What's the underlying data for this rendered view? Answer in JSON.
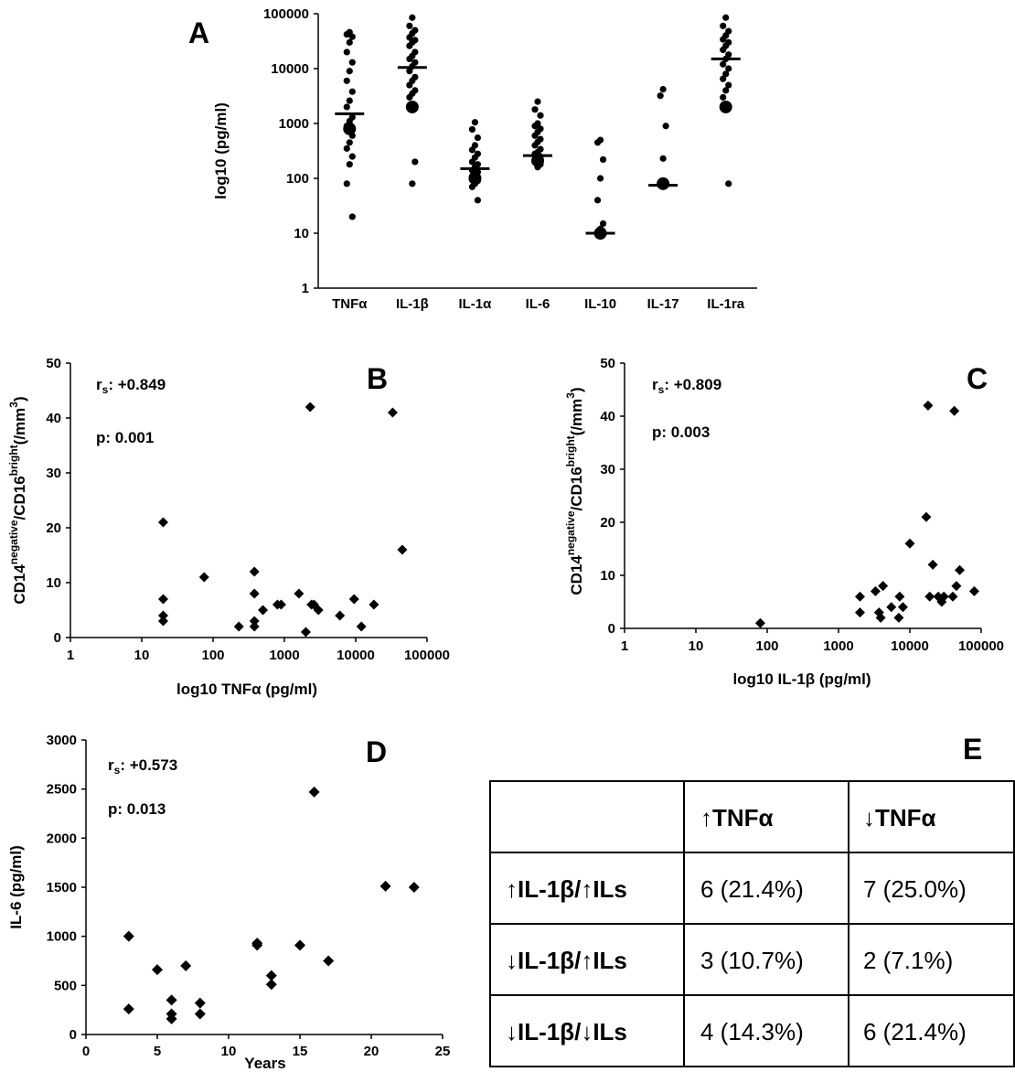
{
  "panels": {
    "A": "A",
    "B": "B",
    "C": "C",
    "D": "D",
    "E": "E"
  },
  "chart_data": [
    {
      "panel": "A",
      "type": "scatter",
      "ylabel": "log10 (pg/ml)",
      "xlabel": "",
      "yscale": "log",
      "ylim": [
        1,
        100000
      ],
      "yticks": [
        "1",
        "10",
        "100",
        "1000",
        "10000",
        "100000"
      ],
      "categories": [
        "TNFα",
        "IL-1β",
        "IL-1α",
        "IL-6",
        "IL-10",
        "IL-17",
        "IL-1ra"
      ],
      "medians": [
        1500,
        10500,
        150,
        260,
        10,
        75,
        15000
      ],
      "large_points": [
        {
          "category": "TNFα",
          "value": 800
        },
        {
          "category": "IL-1β",
          "value": 2000
        },
        {
          "category": "IL-1α",
          "value": 100
        },
        {
          "category": "IL-6",
          "value": 210
        },
        {
          "category": "IL-10",
          "value": 10
        },
        {
          "category": "IL-17",
          "value": 80
        },
        {
          "category": "IL-1ra",
          "value": 2000
        }
      ],
      "points": [
        {
          "category": "TNFα",
          "values": [
            46000,
            42000,
            38000,
            30000,
            20000,
            13000,
            9000,
            6000,
            3800,
            2600,
            2000,
            1300,
            1100,
            900,
            600,
            450,
            350,
            250,
            180,
            80,
            20
          ]
        },
        {
          "category": "IL-1β",
          "values": [
            85000,
            60000,
            50000,
            44000,
            37000,
            33000,
            30000,
            26000,
            20000,
            17000,
            15000,
            13000,
            11000,
            9000,
            7000,
            6000,
            5000,
            4000,
            3500,
            3000,
            200,
            80
          ]
        },
        {
          "category": "IL-1α",
          "values": [
            1050,
            780,
            550,
            400,
            330,
            280,
            240,
            200,
            180,
            160,
            140,
            130,
            120,
            110,
            90,
            80,
            70,
            40
          ]
        },
        {
          "category": "IL-6",
          "values": [
            2500,
            1800,
            1400,
            1000,
            900,
            800,
            700,
            600,
            520,
            460,
            400,
            340,
            300,
            280,
            250,
            230,
            200,
            180,
            160
          ]
        },
        {
          "category": "IL-10",
          "values": [
            500,
            450,
            220,
            100,
            40,
            15,
            12
          ]
        },
        {
          "category": "IL-17",
          "values": [
            4200,
            3200,
            900,
            230,
            80,
            75
          ]
        },
        {
          "category": "IL-1ra",
          "values": [
            85000,
            60000,
            48000,
            40000,
            34000,
            30000,
            26000,
            22000,
            18000,
            15000,
            12000,
            10000,
            8000,
            6500,
            5000,
            4000,
            3000,
            80
          ]
        }
      ]
    },
    {
      "panel": "B",
      "type": "scatter",
      "xlabel": "log10 TNFα (pg/ml)",
      "ylabel_parts": [
        "CD14",
        "negative",
        "/CD16",
        "bright",
        "(/mm",
        "3",
        ")"
      ],
      "xscale": "log",
      "xlim": [
        1,
        100000
      ],
      "ylim": [
        0,
        50
      ],
      "xticks": [
        "1",
        "10",
        "100",
        "1000",
        "10000",
        "100000"
      ],
      "yticks": [
        "0",
        "10",
        "20",
        "30",
        "40",
        "50"
      ],
      "annotation": {
        "rs_label": "r",
        "rs_sub": "s",
        "rs_value": ": +0.849",
        "p": "p: 0.001"
      },
      "points": [
        [
          20,
          21
        ],
        [
          20,
          7
        ],
        [
          20,
          4
        ],
        [
          20,
          3
        ],
        [
          75,
          11
        ],
        [
          230,
          2
        ],
        [
          380,
          12
        ],
        [
          380,
          8
        ],
        [
          380,
          3
        ],
        [
          380,
          2
        ],
        [
          500,
          5
        ],
        [
          800,
          6
        ],
        [
          900,
          6
        ],
        [
          1600,
          8
        ],
        [
          2000,
          1
        ],
        [
          2300,
          42
        ],
        [
          2400,
          6
        ],
        [
          2600,
          6
        ],
        [
          3000,
          5
        ],
        [
          6000,
          4
        ],
        [
          9500,
          7
        ],
        [
          12000,
          2
        ],
        [
          18000,
          6
        ],
        [
          33000,
          41
        ],
        [
          45000,
          16
        ]
      ]
    },
    {
      "panel": "C",
      "type": "scatter",
      "xlabel": "log10 IL-1β (pg/ml)",
      "ylabel_parts": [
        "CD14",
        "negative",
        "/CD16",
        "bright",
        "(/mm",
        "3",
        ")"
      ],
      "xscale": "log",
      "xlim": [
        1,
        100000
      ],
      "ylim": [
        0,
        50
      ],
      "xticks": [
        "1",
        "10",
        "100",
        "1000",
        "10000",
        "100000"
      ],
      "yticks": [
        "0",
        "10",
        "20",
        "30",
        "40",
        "50"
      ],
      "annotation": {
        "rs_label": "r",
        "rs_sub": "s",
        "rs_value": ": +0.809",
        "p": "p: 0.003"
      },
      "points": [
        [
          80,
          1
        ],
        [
          2000,
          6
        ],
        [
          2000,
          3
        ],
        [
          3300,
          7
        ],
        [
          3700,
          3
        ],
        [
          3900,
          2
        ],
        [
          4200,
          8
        ],
        [
          5500,
          4
        ],
        [
          7000,
          2
        ],
        [
          7200,
          6
        ],
        [
          8000,
          4
        ],
        [
          10000,
          16
        ],
        [
          17000,
          21
        ],
        [
          18000,
          42
        ],
        [
          19000,
          6
        ],
        [
          21000,
          12
        ],
        [
          25000,
          6
        ],
        [
          28000,
          5
        ],
        [
          30000,
          6
        ],
        [
          40000,
          6
        ],
        [
          42000,
          41
        ],
        [
          45000,
          8
        ],
        [
          50000,
          11
        ],
        [
          80000,
          7
        ]
      ]
    },
    {
      "panel": "D",
      "type": "scatter",
      "xlabel": "Years",
      "ylabel": "IL-6 (pg/ml)",
      "xlim": [
        0,
        25
      ],
      "ylim": [
        0,
        3000
      ],
      "xticks": [
        "0",
        "5",
        "10",
        "15",
        "20",
        "25"
      ],
      "yticks": [
        "0",
        "500",
        "1000",
        "1500",
        "2000",
        "2500",
        "3000"
      ],
      "annotation": {
        "rs_label": "r",
        "rs_sub": "s",
        "rs_value": ": +0.573",
        "p": "p: 0.013"
      },
      "points": [
        [
          3,
          1000
        ],
        [
          3,
          260
        ],
        [
          5,
          660
        ],
        [
          6,
          350
        ],
        [
          6,
          210
        ],
        [
          6,
          160
        ],
        [
          7,
          700
        ],
        [
          8,
          320
        ],
        [
          8,
          210
        ],
        [
          12,
          930
        ],
        [
          12,
          910
        ],
        [
          13,
          600
        ],
        [
          13,
          510
        ],
        [
          15,
          910
        ],
        [
          16,
          2470
        ],
        [
          17,
          750
        ],
        [
          21,
          1510
        ],
        [
          23,
          1500
        ]
      ]
    },
    {
      "panel": "E",
      "type": "table",
      "columns": [
        "",
        "↑TNFα",
        "↓TNFα"
      ],
      "rows": [
        {
          "label": "↑IL-1β/↑ILs",
          "values": [
            "6 (21.4%)",
            "7 (25.0%)"
          ]
        },
        {
          "label": "↓IL-1β/↑ILs",
          "values": [
            "3 (10.7%)",
            "2 (7.1%)"
          ]
        },
        {
          "label": "↓IL-1β/↓ILs",
          "values": [
            "4 (14.3%)",
            "6 (21.4%)"
          ]
        }
      ]
    }
  ]
}
